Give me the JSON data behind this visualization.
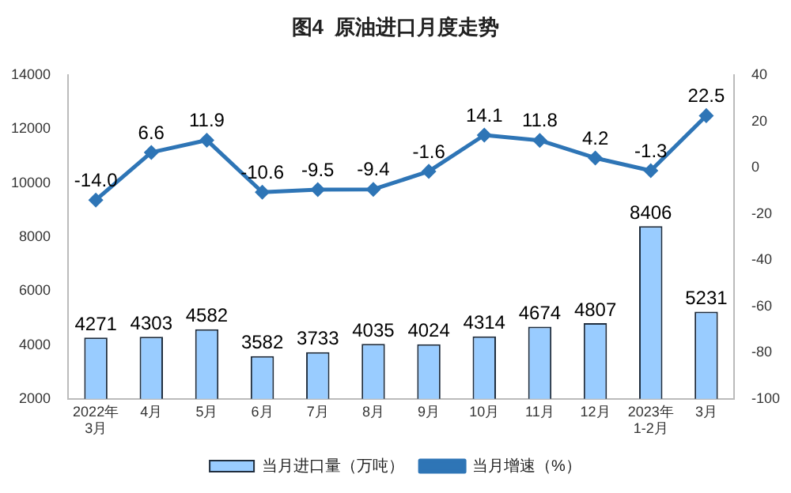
{
  "chart_data": {
    "type": "bar",
    "title": "图4  原油进口月度走势",
    "categories": [
      "2022年3月",
      "4月",
      "5月",
      "6月",
      "7月",
      "8月",
      "9月",
      "10月",
      "11月",
      "12月",
      "2023年1-2月",
      "3月"
    ],
    "series": [
      {
        "name": "当月进口量（万吨）",
        "color": "#99ccff",
        "values": [
          4271,
          4303,
          4582,
          3582,
          3733,
          4035,
          4024,
          4314,
          4674,
          4807,
          8406,
          5231
        ]
      },
      {
        "name": "当月增速（%）",
        "type": "line",
        "axis": "y2",
        "color": "#2e75b6",
        "values": [
          -14.0,
          6.6,
          11.9,
          -10.6,
          -9.5,
          -9.4,
          -1.6,
          14.1,
          11.8,
          4.2,
          -1.3,
          22.5
        ],
        "value_labels": [
          "-14.0",
          "6.6",
          "11.9",
          "-10.6",
          "-9.5",
          "-9.4",
          "-1.6",
          "14.1",
          "11.8",
          "4.2",
          "-1.3",
          "22.5"
        ]
      }
    ],
    "ylim": [
      2000,
      14000
    ],
    "yticks": [
      2000,
      4000,
      6000,
      8000,
      10000,
      12000,
      14000
    ],
    "y2lim": [
      -100,
      40
    ],
    "y2ticks": [
      -100,
      -80,
      -60,
      -40,
      -20,
      0,
      20,
      40
    ],
    "data_labels": true,
    "legend": "bottom",
    "grid": false,
    "marker": "diamond"
  }
}
